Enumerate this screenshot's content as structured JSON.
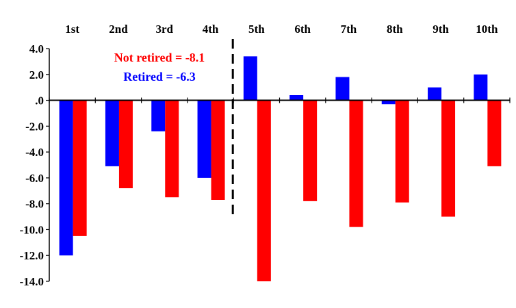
{
  "chart_data": {
    "type": "bar",
    "categories": [
      "1st",
      "2nd",
      "3rd",
      "4th",
      "5th",
      "6th",
      "7th",
      "8th",
      "9th",
      "10th"
    ],
    "series": [
      {
        "name": "Retired",
        "color": "#0000ff",
        "values": [
          -12.0,
          -5.1,
          -2.4,
          -6.0,
          3.4,
          0.4,
          1.8,
          -0.3,
          1.0,
          2.0
        ]
      },
      {
        "name": "Not retired",
        "color": "#ff0000",
        "values": [
          -10.5,
          -6.8,
          -7.5,
          -7.7,
          -14.0,
          -7.8,
          -9.8,
          -7.9,
          -9.0,
          -5.1
        ]
      }
    ],
    "yticks": [
      "4.0",
      "2.0",
      ".0",
      "-2.0",
      "-4.0",
      "-6.0",
      "-8.0",
      "-10.0",
      "-12.0",
      "-14.0"
    ],
    "ylim": [
      -14,
      4
    ],
    "legend_position": "top",
    "grid": false,
    "divider_after_category": "4th",
    "annotations": [
      {
        "text": "Not retired = -8.1",
        "color": "#ff0000"
      },
      {
        "text": "Retired = -6.3",
        "color": "#0000ff"
      }
    ]
  }
}
